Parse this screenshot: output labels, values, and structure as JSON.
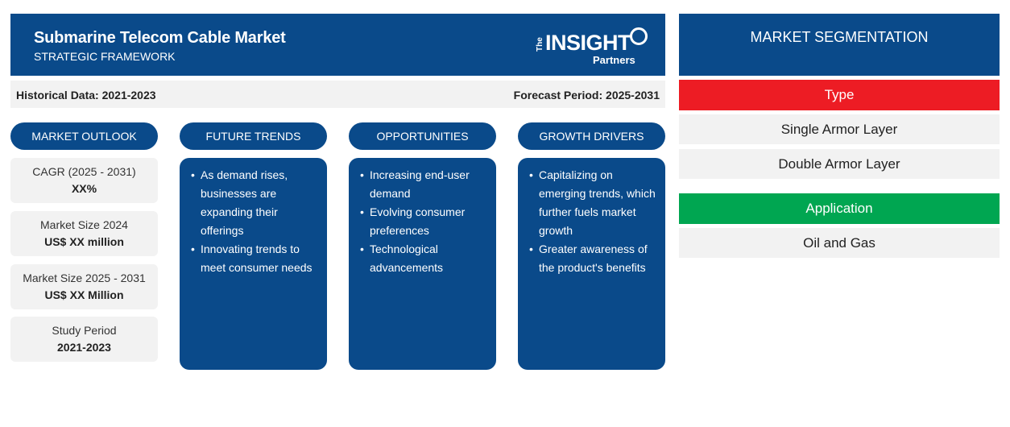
{
  "header": {
    "title": "Submarine Telecom Cable Market",
    "subtitle": "STRATEGIC FRAMEWORK",
    "logo": {
      "the": "The",
      "insight": "INSIGHT",
      "partners": "Partners"
    }
  },
  "period": {
    "historical": "Historical Data: 2021-2023",
    "forecast": "Forecast Period: 2025-2031"
  },
  "columns": {
    "outlook": "MARKET OUTLOOK",
    "trends": "FUTURE TRENDS",
    "opportunities": "OPPORTUNITIES",
    "drivers": "GROWTH DRIVERS"
  },
  "outlook": [
    {
      "label": "CAGR (2025 - 2031)",
      "value": "XX%"
    },
    {
      "label": "Market Size 2024",
      "value": "US$ XX million"
    },
    {
      "label": "Market Size 2025 - 2031",
      "value": "US$ XX Million"
    },
    {
      "label": "Study Period",
      "value": "2021-2023"
    }
  ],
  "trends": [
    "As demand rises, businesses are expanding their offerings",
    "Innovating trends to meet consumer needs"
  ],
  "opportunities": [
    "Increasing end-user demand",
    "Evolving consumer preferences",
    "Technological advancements"
  ],
  "drivers": [
    "Capitalizing on emerging trends, which further fuels market growth",
    "Greater awareness of the product's benefits"
  ],
  "segmentation": {
    "title": "MARKET SEGMENTATION",
    "type_label": "Type",
    "type_color": "#ed1c24",
    "types": [
      "Single Armor Layer",
      "Double Armor Layer"
    ],
    "application_label": "Application",
    "application_color": "#00a651",
    "applications": [
      "Oil and Gas"
    ]
  },
  "colors": {
    "primary": "#0a4a8a",
    "panel": "#f2f2f2"
  }
}
